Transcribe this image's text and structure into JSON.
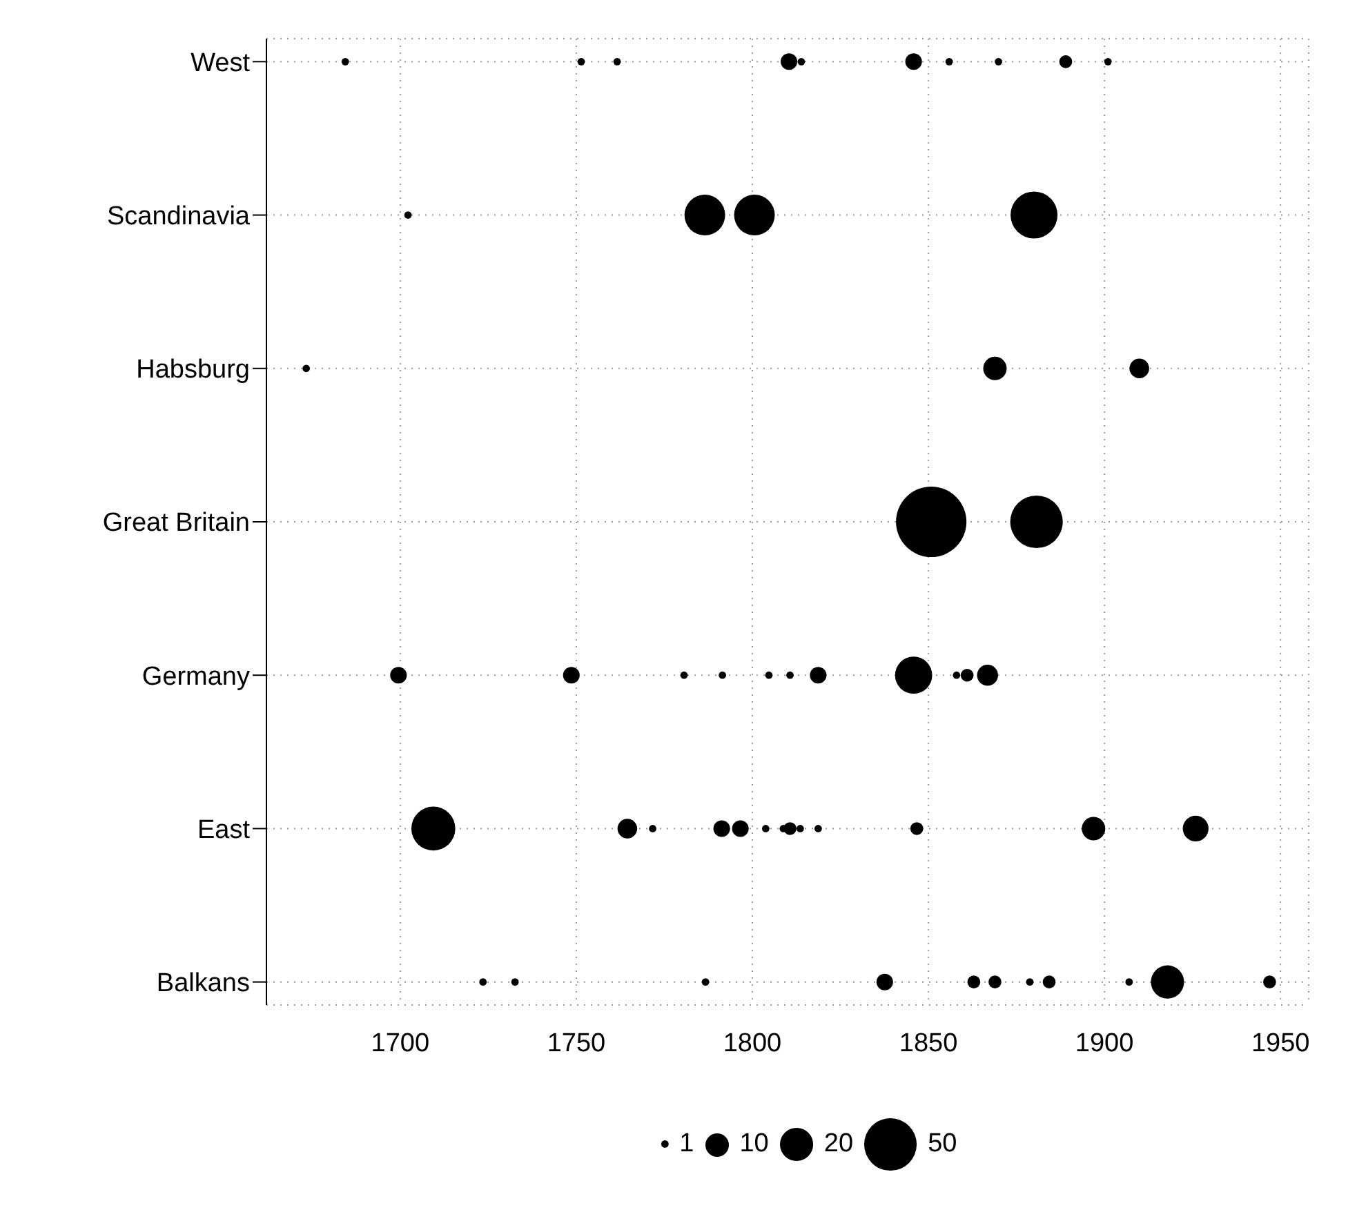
{
  "chart_data": {
    "type": "bubble",
    "orientation": "horizontal",
    "categories": [
      "West",
      "Scandinavia",
      "Habsburg",
      "Great Britain",
      "Germany",
      "East",
      "Balkans"
    ],
    "series": [
      {
        "color": "#000000",
        "values": [
          1684.4,
          1702.2,
          1673.3,
          1850.8,
          1699.5,
          1709.4,
          1723.5
        ],
        "sizes": [
          1,
          1,
          1,
          90,
          5,
          35,
          1
        ]
      },
      {
        "color": "#000000",
        "values": [
          1751.4,
          1786.5,
          1868.9,
          1880.7,
          1748.6,
          1764.5,
          1732.6
        ],
        "sizes": [
          1,
          30,
          10,
          50,
          5,
          7,
          1
        ]
      },
      {
        "color": "#000000",
        "values": [
          1761.6,
          1800.6,
          1909.9,
          null,
          1780.6,
          1771.7,
          1786.7
        ],
        "sizes": [
          1,
          30,
          7,
          null,
          1,
          1,
          1
        ]
      },
      {
        "color": "#000000",
        "values": [
          1810.4,
          1880,
          null,
          null,
          1791.5,
          1791.3,
          1837.6
        ],
        "sizes": [
          5,
          40,
          null,
          null,
          1,
          5,
          5
        ]
      },
      {
        "color": "#000000",
        "values": [
          1813.9,
          null,
          null,
          null,
          1804.7,
          1796.6,
          1862.9
        ],
        "sizes": [
          1,
          null,
          null,
          null,
          1,
          5,
          3
        ]
      },
      {
        "color": "#000000",
        "values": [
          1845.8,
          null,
          null,
          null,
          1810.7,
          1803.8,
          1868.9
        ],
        "sizes": [
          5,
          null,
          null,
          null,
          1,
          1,
          3
        ]
      },
      {
        "color": "#000000",
        "values": [
          1855.9,
          null,
          null,
          null,
          1818.7,
          1808.8,
          1878.8
        ],
        "sizes": [
          1,
          null,
          null,
          null,
          5,
          1,
          1
        ]
      },
      {
        "color": "#000000",
        "values": [
          1869.9,
          null,
          null,
          null,
          1845.8,
          1810.7,
          1884.3
        ],
        "sizes": [
          1,
          null,
          null,
          null,
          25,
          3,
          3
        ]
      },
      {
        "color": "#000000",
        "values": [
          1889,
          null,
          null,
          null,
          1858,
          1813.6,
          1907
        ],
        "sizes": [
          3,
          null,
          null,
          null,
          1,
          1,
          1
        ]
      },
      {
        "color": "#000000",
        "values": [
          1901,
          null,
          null,
          null,
          1861,
          1818.7,
          1917.9
        ],
        "sizes": [
          1,
          null,
          null,
          null,
          3,
          1,
          20
        ]
      },
      {
        "color": "#000000",
        "values": [
          null,
          null,
          null,
          null,
          1866.8,
          1846.7,
          1946.9
        ],
        "sizes": [
          null,
          null,
          null,
          null,
          8,
          3,
          3
        ]
      },
      {
        "color": "#000000",
        "values": [
          null,
          null,
          null,
          null,
          null,
          1896.9,
          null
        ],
        "sizes": [
          null,
          null,
          null,
          null,
          null,
          10,
          null
        ]
      },
      {
        "color": "#000000",
        "values": [
          null,
          null,
          null,
          null,
          null,
          1925.9,
          null
        ],
        "sizes": [
          null,
          null,
          null,
          null,
          null,
          12,
          null
        ]
      }
    ],
    "size_legend": [
      1,
      10,
      20,
      50
    ],
    "xlim": [
      1662,
      1958
    ],
    "xticks": [
      1700,
      1750,
      1800,
      1850,
      1900,
      1950
    ],
    "grid": true
  }
}
